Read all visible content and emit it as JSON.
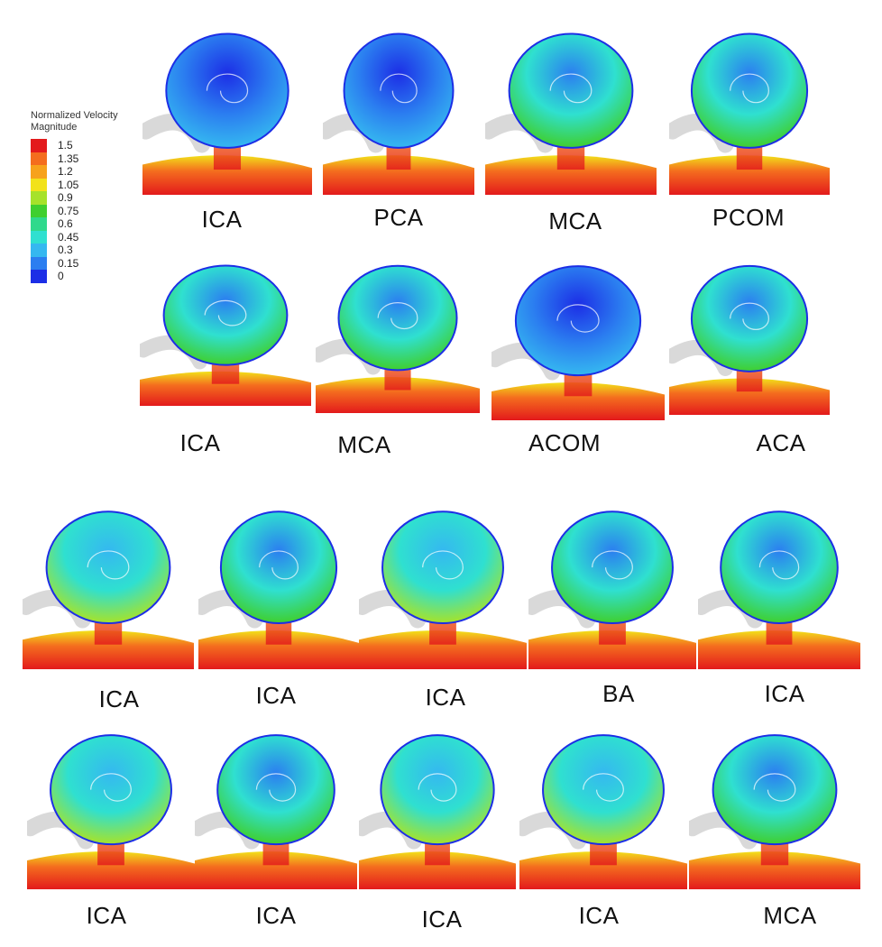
{
  "legend": {
    "title": "Normalized Velocity\nMagnitude",
    "entries": [
      {
        "value": "1.5",
        "color": "#e31a1c"
      },
      {
        "value": "1.35",
        "color": "#f46d1e"
      },
      {
        "value": "1.2",
        "color": "#f7a21c"
      },
      {
        "value": "1.05",
        "color": "#f2e21a"
      },
      {
        "value": "0.9",
        "color": "#a6e22a"
      },
      {
        "value": "0.75",
        "color": "#3fcf2f"
      },
      {
        "value": "0.6",
        "color": "#2fd98c"
      },
      {
        "value": "0.45",
        "color": "#2fe0d0"
      },
      {
        "value": "0.3",
        "color": "#35b8f0"
      },
      {
        "value": "0.15",
        "color": "#2b7ef0"
      },
      {
        "value": "0",
        "color": "#1c2ee6"
      }
    ]
  },
  "panels": [
    {
      "label": "ICA",
      "dome": "blue"
    },
    {
      "label": "PCA",
      "dome": "blue"
    },
    {
      "label": "MCA",
      "dome": "cyan"
    },
    {
      "label": "PCOM",
      "dome": "cyan"
    },
    {
      "label": "ICA",
      "dome": "cyan"
    },
    {
      "label": "MCA",
      "dome": "cyan"
    },
    {
      "label": "ACOM",
      "dome": "blue"
    },
    {
      "label": "ACA",
      "dome": "cyan"
    },
    {
      "label": "ICA",
      "dome": "green"
    },
    {
      "label": "ICA",
      "dome": "cyan"
    },
    {
      "label": "ICA",
      "dome": "green"
    },
    {
      "label": "BA",
      "dome": "cyan"
    },
    {
      "label": "ICA",
      "dome": "cyan"
    },
    {
      "label": "ICA",
      "dome": "green"
    },
    {
      "label": "ICA",
      "dome": "cyan"
    },
    {
      "label": "ICA",
      "dome": "green"
    },
    {
      "label": "ICA",
      "dome": "green"
    },
    {
      "label": "MCA",
      "dome": "cyan"
    }
  ]
}
